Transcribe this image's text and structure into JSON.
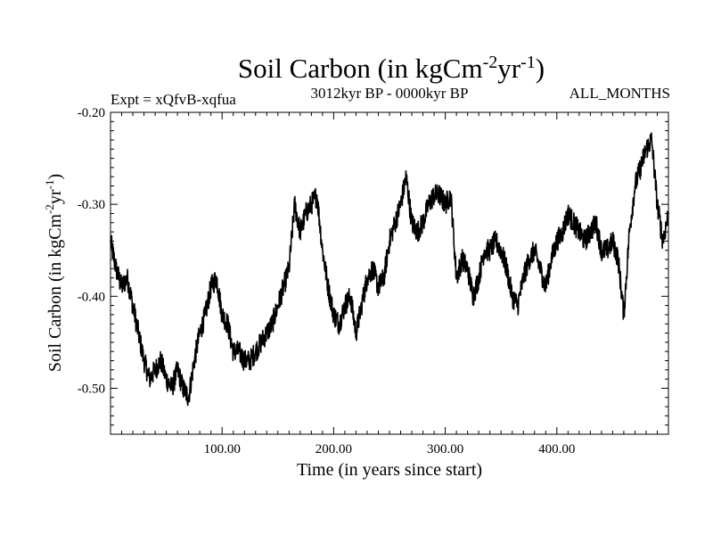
{
  "chart_data": {
    "type": "line",
    "title": {
      "main": "Soil Carbon (in kgCm",
      "sup1": "-2",
      "mid": "yr",
      "sup2": "-1",
      "end": ")"
    },
    "subtitle_left": "Expt = xQfvB-xqfua",
    "subtitle_center": "3012kyr BP - 0000kyr BP",
    "subtitle_right": "ALL_MONTHS",
    "xlabel": "Time (in years since start)",
    "ylabel": {
      "main": "Soil Carbon (in kgCm",
      "sup1": "-2",
      "mid": "yr",
      "sup2": "-1",
      "end": ")"
    },
    "xlim": [
      0,
      500
    ],
    "ylim": [
      -0.55,
      -0.2
    ],
    "x_ticks": [
      100,
      200,
      300,
      400
    ],
    "x_tick_labels": [
      "100.00",
      "200.00",
      "300.00",
      "400.00"
    ],
    "y_ticks": [
      -0.2,
      -0.3,
      -0.4,
      -0.5
    ],
    "y_tick_labels": [
      "-0.20",
      "-0.30",
      "-0.40",
      "-0.50"
    ],
    "grid": false,
    "series": [
      {
        "name": "Soil Carbon",
        "color": "#000000",
        "x": [
          0,
          5,
          10,
          15,
          20,
          25,
          30,
          35,
          40,
          45,
          50,
          55,
          60,
          65,
          70,
          75,
          80,
          85,
          90,
          95,
          100,
          105,
          110,
          115,
          120,
          125,
          130,
          135,
          140,
          145,
          150,
          155,
          160,
          165,
          170,
          175,
          180,
          185,
          190,
          195,
          200,
          205,
          210,
          215,
          220,
          225,
          230,
          235,
          240,
          245,
          250,
          255,
          260,
          265,
          270,
          275,
          280,
          285,
          290,
          295,
          300,
          305,
          310,
          315,
          320,
          325,
          330,
          335,
          340,
          345,
          350,
          355,
          360,
          365,
          370,
          375,
          380,
          385,
          390,
          395,
          400,
          405,
          410,
          415,
          420,
          425,
          430,
          435,
          440,
          445,
          450,
          455,
          460,
          465,
          470,
          475,
          480,
          485,
          490,
          495,
          500
        ],
        "values": [
          -0.34,
          -0.37,
          -0.39,
          -0.38,
          -0.41,
          -0.44,
          -0.47,
          -0.49,
          -0.48,
          -0.47,
          -0.49,
          -0.5,
          -0.48,
          -0.5,
          -0.51,
          -0.47,
          -0.44,
          -0.42,
          -0.39,
          -0.38,
          -0.42,
          -0.43,
          -0.46,
          -0.46,
          -0.47,
          -0.47,
          -0.46,
          -0.45,
          -0.44,
          -0.43,
          -0.41,
          -0.39,
          -0.37,
          -0.3,
          -0.33,
          -0.31,
          -0.3,
          -0.29,
          -0.35,
          -0.39,
          -0.42,
          -0.43,
          -0.41,
          -0.4,
          -0.44,
          -0.41,
          -0.38,
          -0.37,
          -0.39,
          -0.38,
          -0.34,
          -0.32,
          -0.3,
          -0.27,
          -0.32,
          -0.33,
          -0.32,
          -0.3,
          -0.29,
          -0.29,
          -0.3,
          -0.29,
          -0.38,
          -0.36,
          -0.37,
          -0.4,
          -0.38,
          -0.35,
          -0.35,
          -0.34,
          -0.35,
          -0.37,
          -0.4,
          -0.41,
          -0.38,
          -0.36,
          -0.35,
          -0.37,
          -0.39,
          -0.36,
          -0.34,
          -0.33,
          -0.31,
          -0.32,
          -0.33,
          -0.34,
          -0.33,
          -0.32,
          -0.35,
          -0.35,
          -0.34,
          -0.36,
          -0.42,
          -0.33,
          -0.28,
          -0.26,
          -0.24,
          -0.23,
          -0.3,
          -0.34,
          -0.31
        ]
      }
    ]
  }
}
